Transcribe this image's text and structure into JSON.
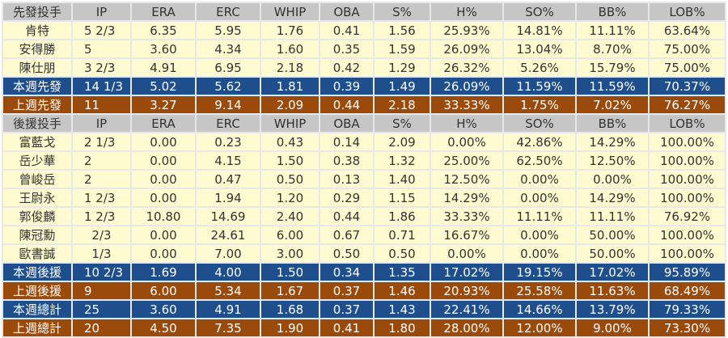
{
  "columns": [
    "IP",
    "ERA",
    "ERC",
    "WHIP",
    "OBA",
    "S%",
    "H%",
    "SO%",
    "BB%",
    "LOB%"
  ],
  "rows": [
    {
      "type": "hdr",
      "cells": [
        "先發投手",
        "IP",
        "ERA",
        "ERC",
        "WHIP",
        "OBA",
        "S%",
        "H%",
        "SO%",
        "BB%",
        "LOB%"
      ]
    },
    {
      "type": "p",
      "cells": [
        "肯特",
        "5 2/3",
        "6.35",
        "5.95",
        "1.76",
        "0.41",
        "1.56",
        "25.93%",
        "14.81%",
        "11.11%",
        "63.64%"
      ]
    },
    {
      "type": "p",
      "cells": [
        "安得勝",
        "5",
        "3.60",
        "4.34",
        "1.60",
        "0.35",
        "1.59",
        "26.09%",
        "13.04%",
        "8.70%",
        "75.00%"
      ]
    },
    {
      "type": "p",
      "cells": [
        "陳仕朋",
        "3 2/3",
        "4.91",
        "6.95",
        "2.18",
        "0.42",
        "1.29",
        "26.32%",
        "5.26%",
        "15.79%",
        "75.00%"
      ]
    },
    {
      "type": "blue",
      "cells": [
        "本週先發",
        "14 1/3",
        "5.02",
        "5.62",
        "1.81",
        "0.39",
        "1.49",
        "26.09%",
        "11.59%",
        "11.59%",
        "70.37%"
      ]
    },
    {
      "type": "brown",
      "cells": [
        "上週先發",
        "11",
        "3.27",
        "9.14",
        "2.09",
        "0.44",
        "2.18",
        "33.33%",
        "1.75%",
        "7.02%",
        "76.27%"
      ]
    },
    {
      "type": "hdr",
      "cells": [
        "後援投手",
        "IP",
        "ERA",
        "ERC",
        "WHIP",
        "OBA",
        "S%",
        "H%",
        "SO%",
        "BB%",
        "LOB%"
      ]
    },
    {
      "type": "p",
      "cells": [
        "富藍戈",
        "2 1/3",
        "0.00",
        "0.23",
        "0.43",
        "0.14",
        "2.09",
        "0.00%",
        "42.86%",
        "14.29%",
        "100.00%"
      ]
    },
    {
      "type": "p",
      "cells": [
        "岳少華",
        "2",
        "0.00",
        "4.15",
        "1.50",
        "0.38",
        "1.32",
        "25.00%",
        "62.50%",
        "12.50%",
        "100.00%"
      ]
    },
    {
      "type": "p",
      "cells": [
        "曾峻岳",
        "2",
        "0.00",
        "0.47",
        "0.50",
        "0.13",
        "1.40",
        "12.50%",
        "0.00%",
        "0.00%",
        "100.00%"
      ]
    },
    {
      "type": "p",
      "cells": [
        "王尉永",
        "1 2/3",
        "0.00",
        "1.94",
        "1.20",
        "0.29",
        "1.15",
        "14.29%",
        "0.00%",
        "14.29%",
        "100.00%"
      ]
    },
    {
      "type": "p",
      "cells": [
        "郭俊麟",
        "1 2/3",
        "10.80",
        "14.69",
        "2.40",
        "0.44",
        "1.86",
        "33.33%",
        "11.11%",
        "11.11%",
        "76.92%"
      ]
    },
    {
      "type": "p",
      "cells": [
        "陳冠勳",
        "2/3",
        "0.00",
        "24.61",
        "6.00",
        "0.67",
        "0.71",
        "16.67%",
        "0.00%",
        "50.00%",
        "100.00%"
      ]
    },
    {
      "type": "p",
      "cells": [
        "歐書誠",
        "1/3",
        "0.00",
        "7.00",
        "3.00",
        "0.50",
        "0.50",
        "0.00%",
        "0.00%",
        "50.00%",
        "100.00%"
      ]
    },
    {
      "type": "blue",
      "cells": [
        "本週後援",
        "10 2/3",
        "1.69",
        "4.00",
        "1.50",
        "0.34",
        "1.35",
        "17.02%",
        "19.15%",
        "17.02%",
        "95.89%"
      ]
    },
    {
      "type": "brown",
      "cells": [
        "上週後援",
        "9",
        "6.00",
        "5.34",
        "1.67",
        "0.37",
        "1.46",
        "20.93%",
        "25.58%",
        "11.63%",
        "68.49%"
      ]
    },
    {
      "type": "blue",
      "cells": [
        "本週總計",
        "25",
        "3.60",
        "4.91",
        "1.68",
        "0.37",
        "1.43",
        "22.41%",
        "14.66%",
        "13.79%",
        "79.33%"
      ]
    },
    {
      "type": "brown",
      "cells": [
        "上週總計",
        "20",
        "4.50",
        "7.35",
        "1.90",
        "0.41",
        "1.80",
        "28.00%",
        "12.00%",
        "9.00%",
        "73.30%"
      ]
    }
  ]
}
